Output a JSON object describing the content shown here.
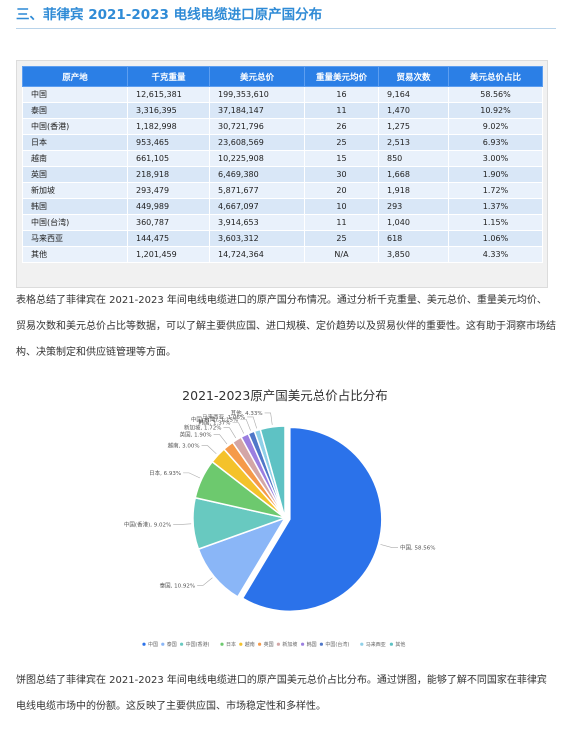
{
  "page": {
    "title": "三、菲律宾 2021-2023 电线电缆进口原产国分布",
    "para1": "表格总结了菲律宾在 2021-2023 年间电线电缆进口的原产国分布情况。通过分析千克重量、美元总价、重量美元均价、贸易次数和美元总价占比等数据，可以了解主要供应国、进口规模、定价趋势以及贸易伙伴的重要性。这有助于洞察市场结构、决策制定和供应链管理等方面。",
    "para2": "饼图总结了菲律宾在 2021-2023 年间电线电缆进口的原产国美元总价占比分布。通过饼图，能够了解不同国家在菲律宾电线电缆市场中的份额。这反映了主要供应国、市场稳定性和多样性。"
  },
  "table": {
    "headers": [
      "原产地",
      "千克重量",
      "美元总价",
      "重量美元均价",
      "贸易次数",
      "美元总价占比"
    ],
    "rows": [
      [
        "中国",
        "12,615,381",
        "199,353,610",
        "16",
        "9,164",
        "58.56%"
      ],
      [
        "泰国",
        "3,316,395",
        "37,184,147",
        "11",
        "1,470",
        "10.92%"
      ],
      [
        "中国(香港)",
        "1,182,998",
        "30,721,796",
        "26",
        "1,275",
        "9.02%"
      ],
      [
        "日本",
        "953,465",
        "23,608,569",
        "25",
        "2,513",
        "6.93%"
      ],
      [
        "越南",
        "661,105",
        "10,225,908",
        "15",
        "850",
        "3.00%"
      ],
      [
        "英国",
        "218,918",
        "6,469,380",
        "30",
        "1,668",
        "1.90%"
      ],
      [
        "新加坡",
        "293,479",
        "5,871,677",
        "20",
        "1,918",
        "1.72%"
      ],
      [
        "韩国",
        "449,989",
        "4,667,097",
        "10",
        "293",
        "1.37%"
      ],
      [
        "中国(台湾)",
        "360,787",
        "3,914,653",
        "11",
        "1,040",
        "1.15%"
      ],
      [
        "马来西亚",
        "144,475",
        "3,603,312",
        "25",
        "618",
        "1.06%"
      ],
      [
        "其他",
        "1,201,459",
        "14,724,364",
        "N/A",
        "3,850",
        "4.33%"
      ]
    ]
  },
  "chart_data": {
    "type": "pie",
    "title": "2021-2023原产国美元总价占比分布",
    "categories": [
      "中国",
      "泰国",
      "中国(香港)",
      "日本",
      "越南",
      "英国",
      "新加坡",
      "韩国",
      "中国(台湾)",
      "马来西亚",
      "其他"
    ],
    "values": [
      58.56,
      10.92,
      9.02,
      6.93,
      3.0,
      1.9,
      1.72,
      1.37,
      1.15,
      1.06,
      4.33
    ],
    "labels": [
      "中国, 58.56%",
      "泰国, 10.92%",
      "中国(香港), 9.02%",
      "日本, 6.93%",
      "越南, 3.00%",
      "英国, 1.90%",
      "新加坡, 1.72%",
      "韩国, 1.37%",
      "中国(台湾), 1.15%",
      "马来西亚, 1.06%",
      "其他, 4.33%"
    ],
    "colors": [
      "#2b72ea",
      "#8ab6f7",
      "#68c9c0",
      "#6dc96e",
      "#f4c22b",
      "#f59a4a",
      "#d3a6a6",
      "#9b7fe0",
      "#4f77c8",
      "#8fd0e8",
      "#5ec2c4"
    ],
    "legend_position": "bottom"
  }
}
